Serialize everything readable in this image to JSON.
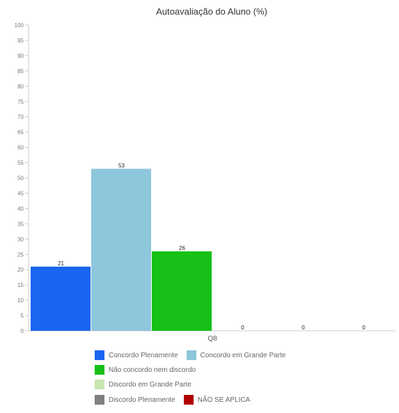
{
  "chart_data": {
    "type": "bar",
    "title": "Autoavaliação do Aluno (%)",
    "categories": [
      "Q8"
    ],
    "ylim": [
      0,
      100
    ],
    "yticks": [
      0,
      5,
      10,
      15,
      20,
      25,
      30,
      35,
      40,
      45,
      50,
      55,
      60,
      65,
      70,
      75,
      80,
      85,
      90,
      95,
      100
    ],
    "series": [
      {
        "name": "Concordo Plenamente",
        "values": [
          21
        ],
        "color": "#1a66f0"
      },
      {
        "name": "Concordo em Grande Parte",
        "values": [
          53
        ],
        "color": "#8ec6dc"
      },
      {
        "name": "Não concordo nem discordo",
        "values": [
          26
        ],
        "color": "#16c016"
      },
      {
        "name": "Discordo em Grande Parte",
        "values": [
          0
        ],
        "color": "#c8e6b0"
      },
      {
        "name": "Discordo Plenamente",
        "values": [
          0
        ],
        "color": "#808080"
      },
      {
        "name": "NÃO SE APLICA",
        "values": [
          0
        ],
        "color": "#b00000"
      }
    ],
    "legend_position": "bottom",
    "grid": false
  }
}
